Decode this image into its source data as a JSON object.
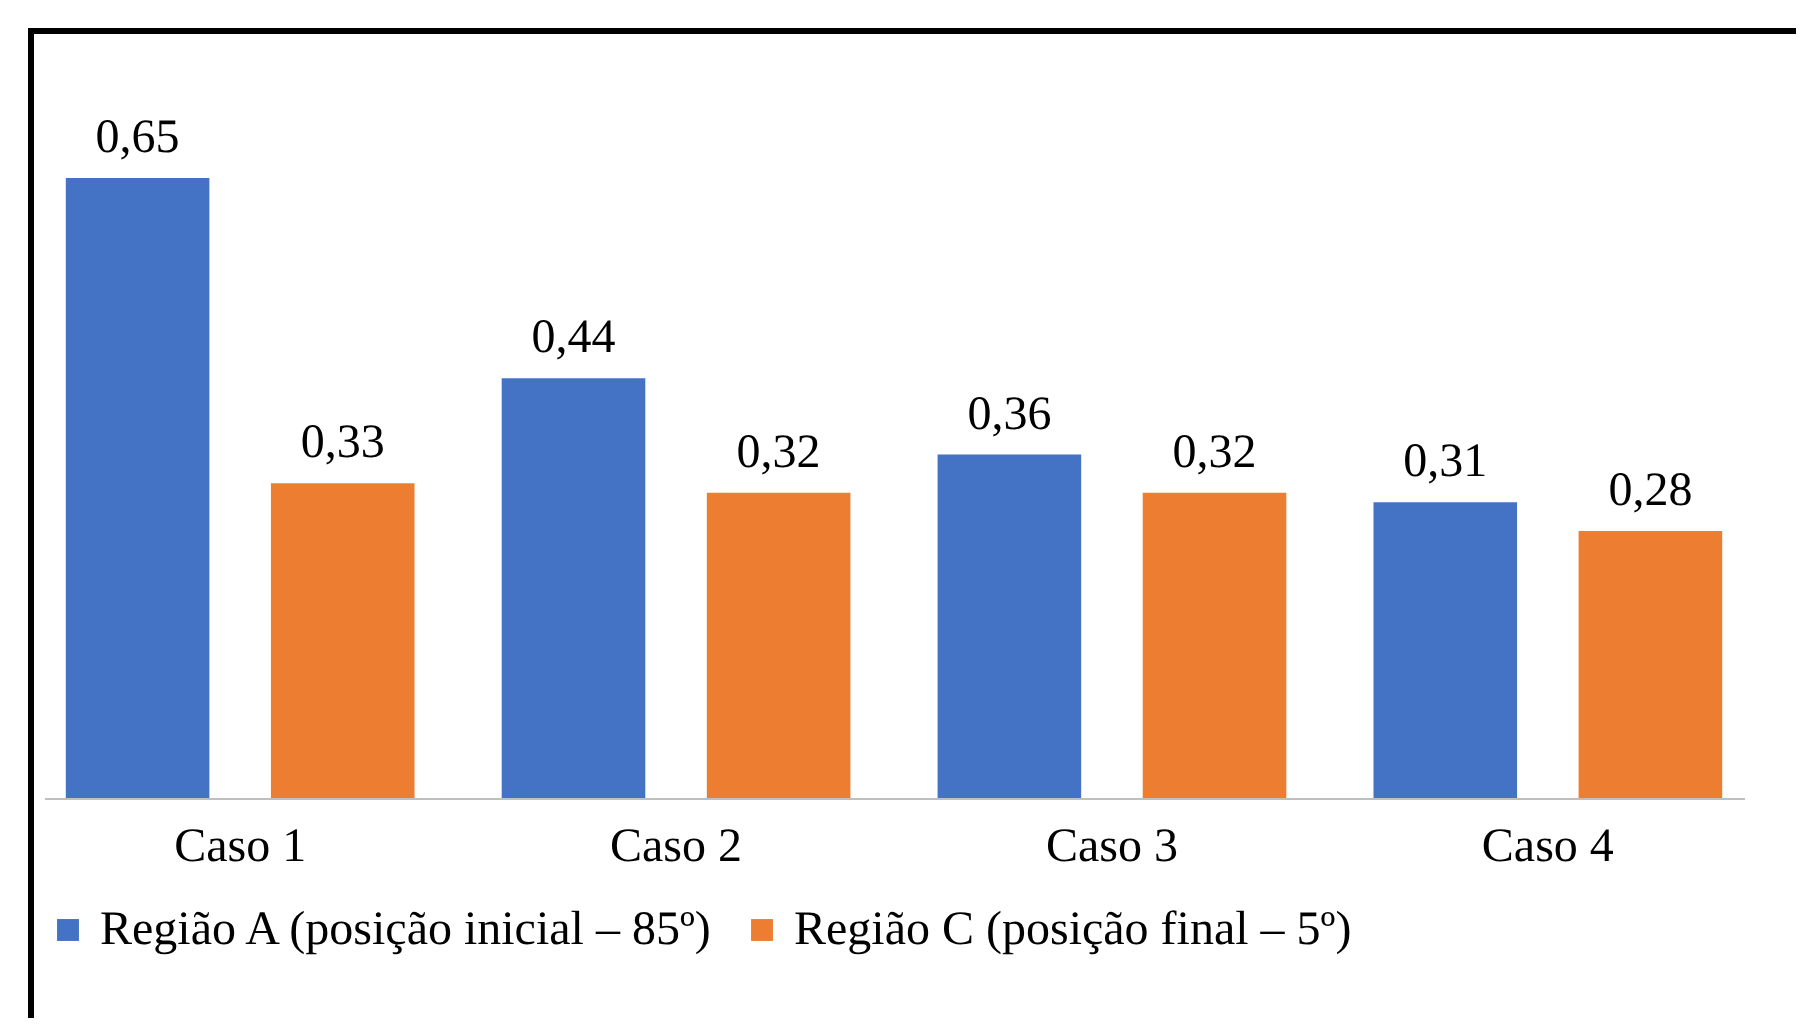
{
  "chart_data": {
    "type": "bar",
    "categories": [
      "Caso 1",
      "Caso 2",
      "Caso 3",
      "Caso 4"
    ],
    "series": [
      {
        "name": "Região A (posição inicial – 85º)",
        "color": "#4472c4",
        "values": [
          0.65,
          0.44,
          0.36,
          0.31
        ],
        "value_labels": [
          "0,65",
          "0,44",
          "0,36",
          "0,31"
        ]
      },
      {
        "name": "Região C (posição final – 5º)",
        "color": "#ed7d31",
        "values": [
          0.33,
          0.32,
          0.32,
          0.28
        ],
        "value_labels": [
          "0,33",
          "0,32",
          "0,32",
          "0,28"
        ]
      }
    ],
    "legend": "bottom",
    "grid": false
  }
}
